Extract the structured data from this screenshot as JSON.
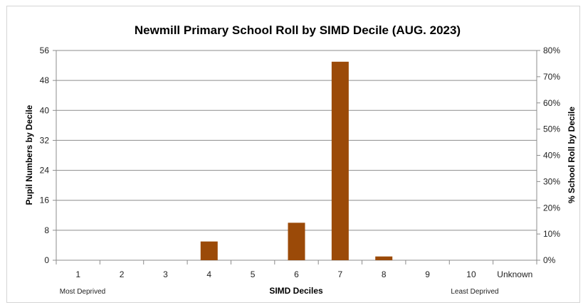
{
  "chart_data": {
    "type": "bar",
    "title": "Newmill Primary School Roll by SIMD Decile (AUG. 2023)",
    "xlabel": "SIMD Deciles",
    "ylabel": "Pupil Numbers by Decile",
    "y2label": "% School Roll by Decile",
    "categories": [
      "1",
      "2",
      "3",
      "4",
      "5",
      "6",
      "7",
      "8",
      "9",
      "10",
      "Unknown"
    ],
    "series": [
      {
        "values": [
          0,
          0,
          0,
          5,
          0,
          10,
          53,
          1,
          0,
          0,
          0
        ]
      }
    ],
    "ylim": [
      0,
      56
    ],
    "yticks": [
      "0",
      "8",
      "16",
      "24",
      "32",
      "40",
      "48",
      "56"
    ],
    "y2lim": [
      0,
      80
    ],
    "y2ticks": [
      "0%",
      "10%",
      "20%",
      "30%",
      "40%",
      "50%",
      "60%",
      "70%",
      "80%"
    ],
    "x_notes": {
      "left": "Most Deprived",
      "right": "Least Deprived"
    },
    "grid": true,
    "bar_color": "#9b4a08"
  }
}
